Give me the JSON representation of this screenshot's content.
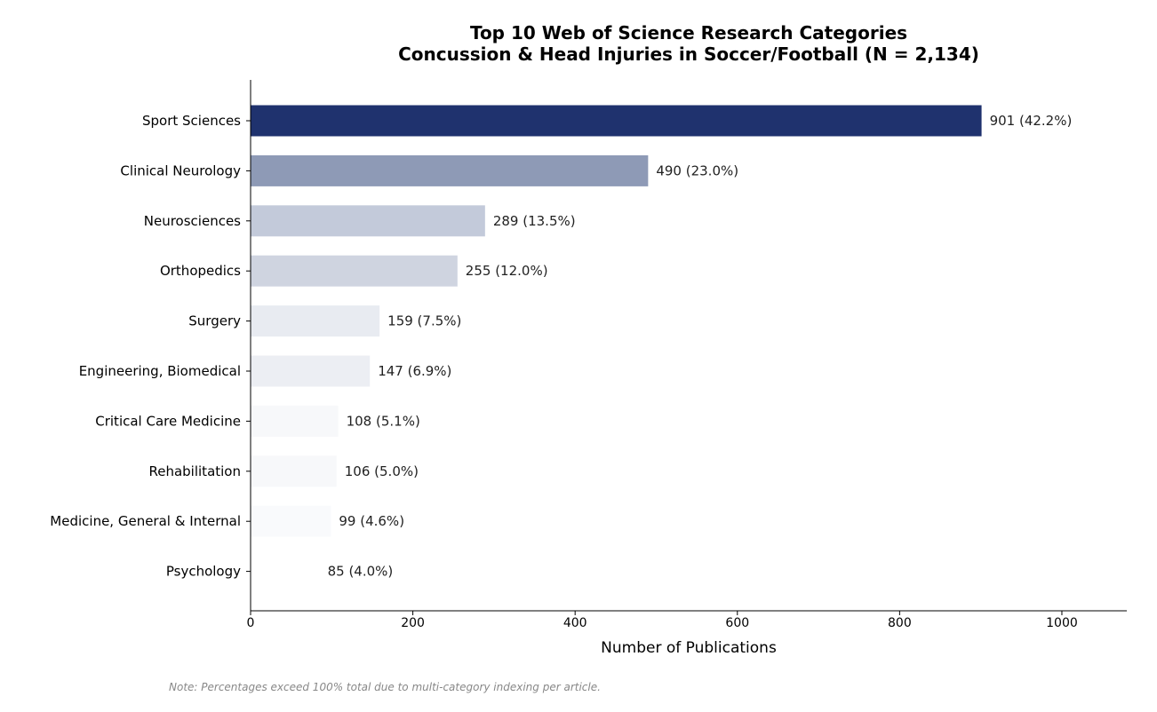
{
  "chart_data": {
    "type": "bar",
    "orientation": "horizontal",
    "title_line1": "Top 10 Web of Science Research Categories",
    "title_line2": "Concussion & Head Injuries in Soccer/Football (N = 2,134)",
    "xlabel": "Number of Publications",
    "ylabel": "",
    "xlim": [
      0,
      1080
    ],
    "xticks": [
      0,
      200,
      400,
      600,
      800,
      1000
    ],
    "grid": false,
    "categories": [
      "Sport Sciences",
      "Clinical Neurology",
      "Neurosciences",
      "Orthopedics",
      "Surgery",
      "Engineering, Biomedical",
      "Critical Care Medicine",
      "Rehabilitation",
      "Medicine, General & Internal",
      "Psychology"
    ],
    "values": [
      901,
      490,
      289,
      255,
      159,
      147,
      108,
      106,
      99,
      85
    ],
    "data_labels": [
      "901  (42.2%)",
      "490  (23.0%)",
      "289  (13.5%)",
      "255  (12.0%)",
      "159  (7.5%)",
      "147  (6.9%)",
      "108  (5.1%)",
      "106  (5.0%)",
      "99  (4.6%)",
      "85  (4.0%)"
    ],
    "colors": [
      "#1f326e",
      "#8e9ab6",
      "#c3cada",
      "#cfd4e0",
      "#e8ebf1",
      "#eceef3",
      "#f7f8fa",
      "#f7f8fa",
      "#f9fafc",
      "#ffffff"
    ],
    "note": "Note: Percentages exceed 100% total due to multi-category indexing per article."
  }
}
